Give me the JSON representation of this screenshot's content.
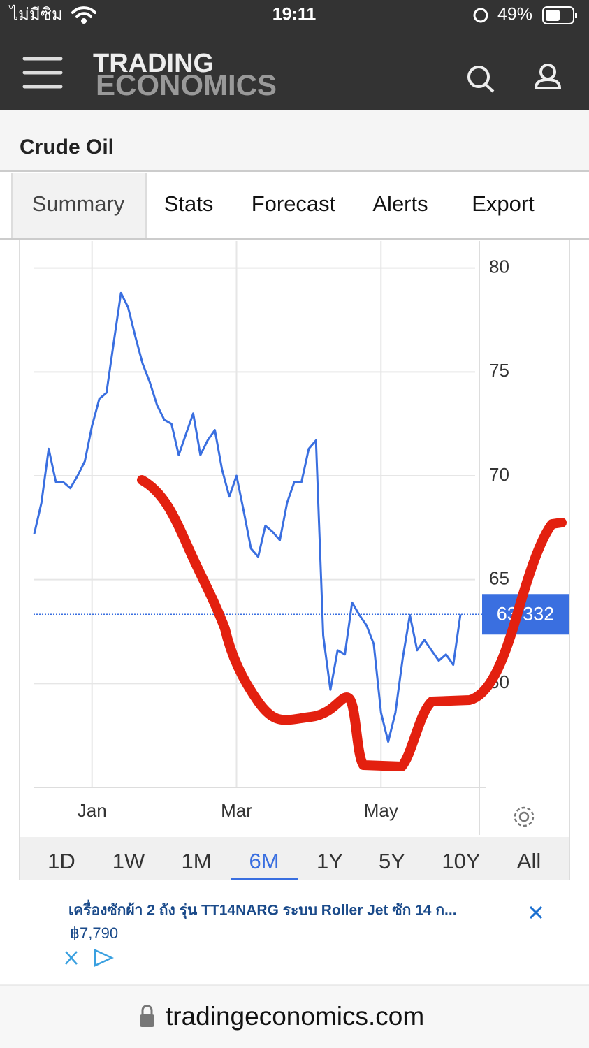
{
  "status_bar": {
    "carrier": "ไม่มีซิม",
    "time": "19:11",
    "battery": "49%"
  },
  "header": {
    "logo_line1": "TRADING",
    "logo_line2": "ECONOMICS"
  },
  "page_title": "Crude Oil",
  "tabs": [
    "Summary",
    "Stats",
    "Forecast",
    "Alerts",
    "Export"
  ],
  "chart_data": {
    "type": "line",
    "categories": [
      null,
      null,
      null,
      null,
      null,
      null,
      null,
      null,
      "Jan",
      null,
      null,
      null,
      null,
      null,
      null,
      null,
      null,
      null,
      null,
      null,
      null,
      null,
      null,
      null,
      null,
      null,
      null,
      null,
      "Mar",
      null,
      null,
      null,
      null,
      null,
      null,
      null,
      null,
      null,
      null,
      null,
      null,
      null,
      null,
      null,
      null,
      null,
      null,
      null,
      "May",
      null,
      null,
      null,
      null,
      null,
      null,
      null,
      null,
      null,
      null,
      null
    ],
    "series": [
      {
        "color": "#3a6fe0",
        "values": [
          67.2,
          68.7,
          71.3,
          69.7,
          69.7,
          69.4,
          70.0,
          70.7,
          72.4,
          73.7,
          74.0,
          76.4,
          78.8,
          78.1,
          76.7,
          75.4,
          74.5,
          73.4,
          72.7,
          72.5,
          71.0,
          72.0,
          73.0,
          71.0,
          71.7,
          72.2,
          70.3,
          69.0,
          70.0,
          68.3,
          66.5,
          66.1,
          67.6,
          67.3,
          66.9,
          68.7,
          69.7,
          69.7,
          71.3,
          71.7,
          62.3,
          59.7,
          61.6,
          61.4,
          63.9,
          63.3,
          62.8,
          61.9,
          58.6,
          57.2,
          58.6,
          61.2,
          63.3,
          61.6,
          62.1,
          61.6,
          61.1,
          61.4,
          60.9,
          63.332
        ]
      }
    ],
    "ylim": [
      55,
      81.3
    ],
    "yticks": [
      60,
      65,
      70,
      75,
      80
    ],
    "grid": true
  },
  "ranges": [
    "1D",
    "1W",
    "1M",
    "6M",
    "1Y",
    "5Y",
    "10Y",
    "All"
  ],
  "selected_range": "6M",
  "ad": {
    "title": "เครื่องซักผ้า 2 ถัง รุ่น TT14NARG ระบบ Roller Jet ซัก 14 ก...",
    "price": "฿7,790"
  },
  "url": "tradingeconomics.com"
}
